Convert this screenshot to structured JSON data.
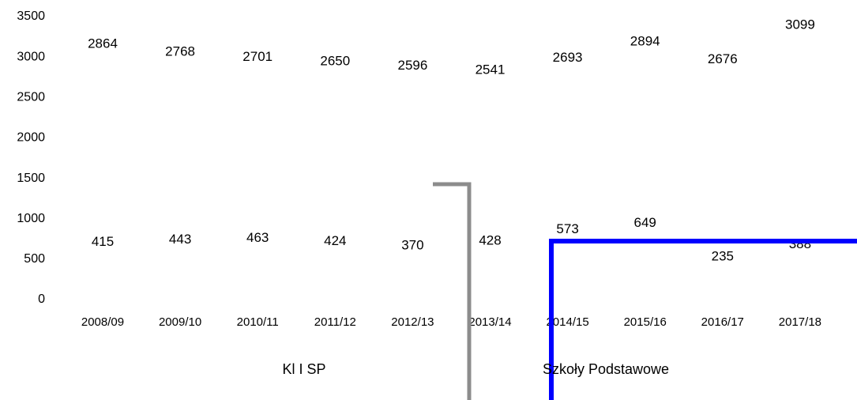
{
  "chart_data": {
    "type": "bar",
    "categories": [
      "2008/09",
      "2009/10",
      "2010/11",
      "2011/12",
      "2012/13",
      "2013/14",
      "2014/15",
      "2015/16",
      "2016/17",
      "2017/18"
    ],
    "series": [
      {
        "name": "Kl I SP",
        "color": "#8c8c8c",
        "values": [
          415,
          443,
          463,
          424,
          370,
          428,
          573,
          649,
          235,
          388
        ]
      },
      {
        "name": "Szkoły Podstawowe",
        "color": "#0000ff",
        "values": [
          2864,
          2768,
          2701,
          2650,
          2596,
          2541,
          2693,
          2894,
          2676,
          3099
        ]
      }
    ],
    "ylim": [
      0,
      3500
    ],
    "yticks": [
      0,
      500,
      1000,
      1500,
      2000,
      2500,
      3000,
      3500
    ]
  }
}
